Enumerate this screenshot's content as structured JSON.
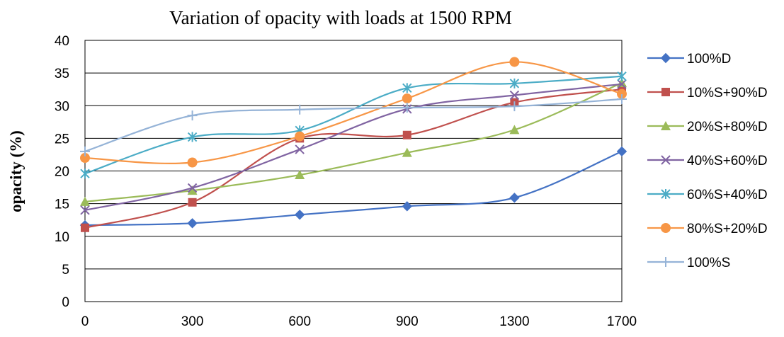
{
  "chart_data": {
    "type": "line",
    "title": "Variation of opacity with loads at 1500 RPM",
    "ylabel": "opacity (%)",
    "xlabel": "",
    "categories": [
      "0",
      "300",
      "600",
      "900",
      "1300",
      "1700"
    ],
    "ylim": [
      0,
      40
    ],
    "yticks": [
      0,
      5,
      10,
      15,
      20,
      25,
      30,
      35,
      40
    ],
    "grid": true,
    "legend_position": "right",
    "smooth": true,
    "series": [
      {
        "name": "100%D",
        "values": [
          11.7,
          12.0,
          13.3,
          14.6,
          15.9,
          23.0
        ],
        "color": "#4472C4",
        "marker": "diamond"
      },
      {
        "name": "10%S+90%D",
        "values": [
          11.3,
          15.2,
          25.0,
          25.5,
          30.5,
          32.5
        ],
        "color": "#C0504D",
        "marker": "square"
      },
      {
        "name": "20%S+80%D",
        "values": [
          15.3,
          17.0,
          19.4,
          22.8,
          26.3,
          33.5
        ],
        "color": "#9BBB59",
        "marker": "triangle"
      },
      {
        "name": "40%S+60%D",
        "values": [
          14.0,
          17.4,
          23.3,
          29.5,
          31.6,
          33.3
        ],
        "color": "#8064A2",
        "marker": "x"
      },
      {
        "name": "60%S+40%D",
        "values": [
          19.6,
          25.2,
          26.2,
          32.7,
          33.4,
          34.5
        ],
        "color": "#4BACC6",
        "marker": "star"
      },
      {
        "name": "80%S+20%D",
        "values": [
          22.0,
          21.3,
          25.3,
          31.1,
          36.7,
          31.8
        ],
        "color": "#F79646",
        "marker": "circle"
      },
      {
        "name": "100%S",
        "values": [
          23.0,
          28.5,
          29.4,
          29.7,
          29.9,
          31.0
        ],
        "color": "#95B3D7",
        "marker": "plus"
      }
    ]
  }
}
